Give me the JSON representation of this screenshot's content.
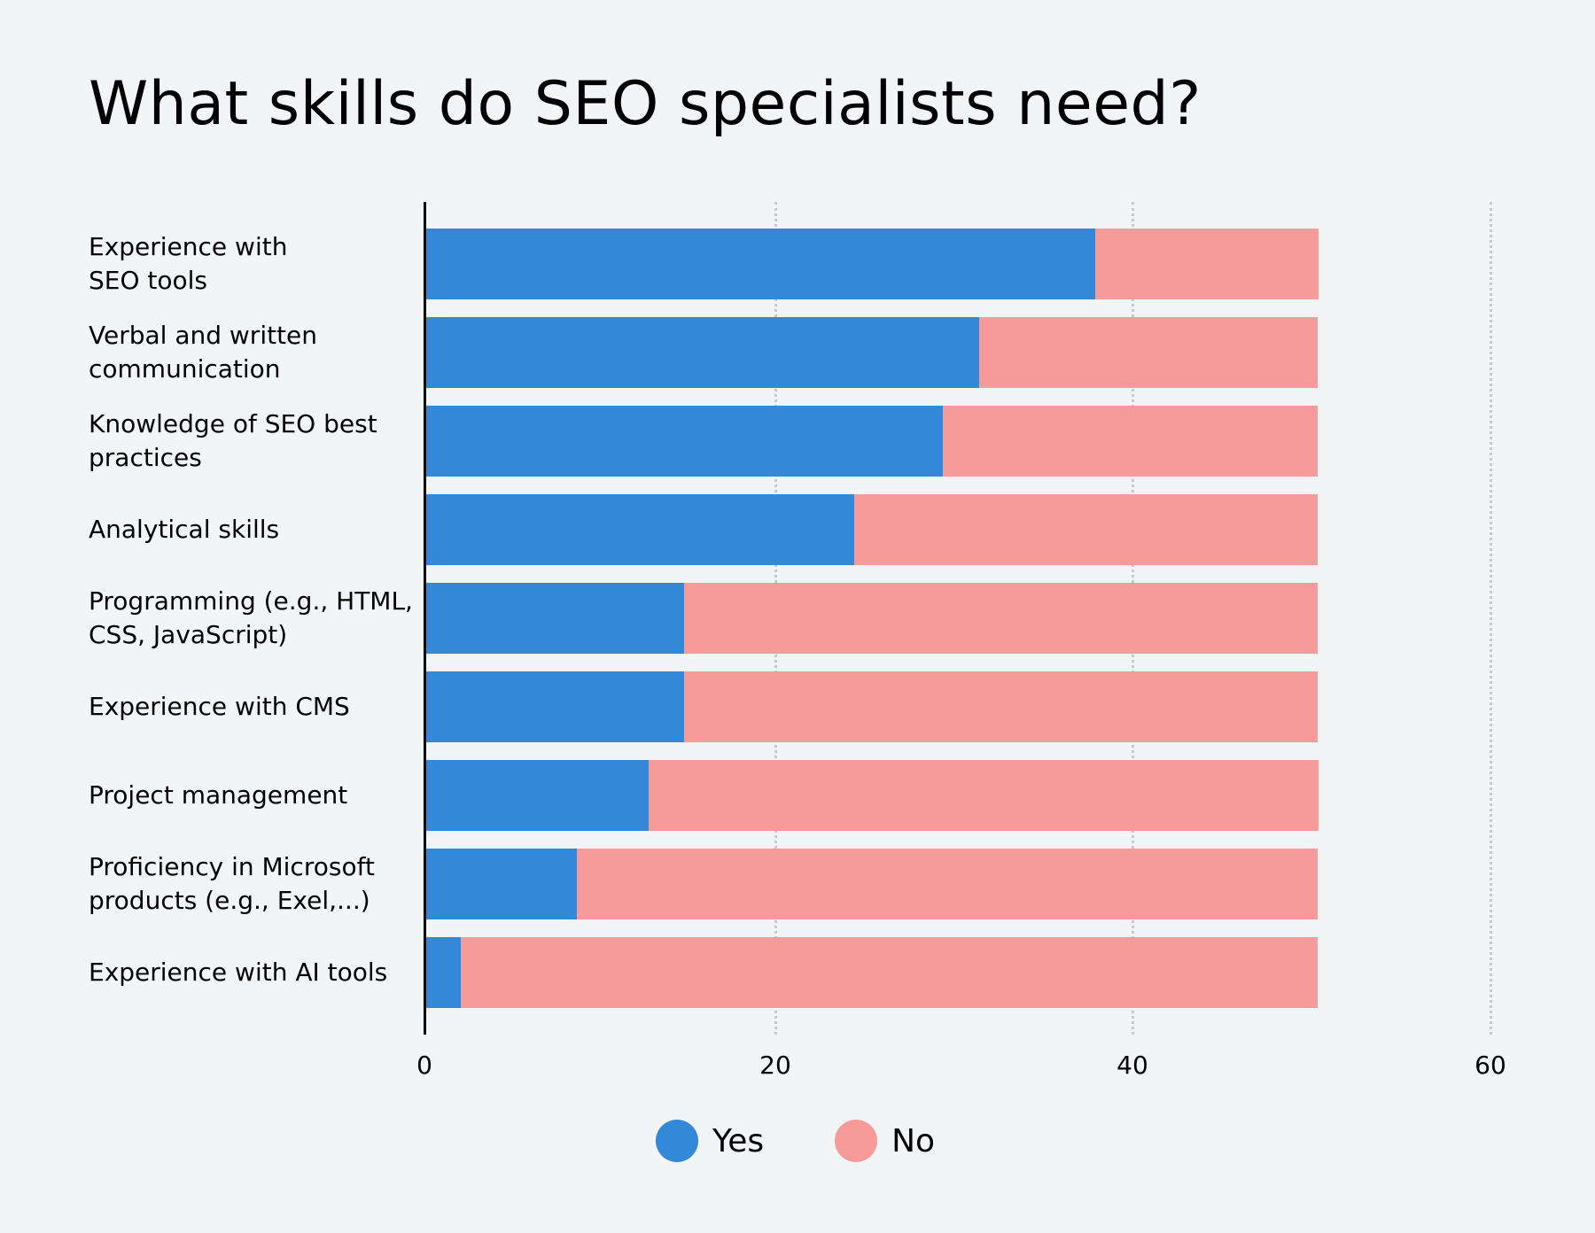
{
  "title": "What skills do SEO specialists need?",
  "colors": {
    "yes": "#3388d8",
    "no": "#f79a9a",
    "background": "#f3f4f6"
  },
  "legend": [
    {
      "label": "Yes",
      "color": "#3388d8"
    },
    {
      "label": "No",
      "color": "#f79a9a"
    }
  ],
  "axis": {
    "ticks": [
      "0",
      "20",
      "40",
      "60"
    ]
  },
  "chart_data": {
    "type": "bar",
    "orientation": "horizontal",
    "stacked": true,
    "title": "What skills do SEO specialists need?",
    "xlabel": "",
    "ylabel": "",
    "xlim": [
      0,
      60
    ],
    "xticks": [
      0,
      20,
      40,
      60
    ],
    "grid": "vertical dotted",
    "legend_position": "bottom",
    "categories": [
      "Experience with SEO tools",
      "Verbal and written communication",
      "Knowledge of SEO best practices",
      "Analytical skills",
      "Programming (e.g., HTML, CSS, JavaScript)",
      "Experience with CMS",
      "Project management",
      "Proficiency in Microsoft products (e.g., Exel,...)",
      "Experience with AI tools"
    ],
    "series": [
      {
        "name": "Yes",
        "values": [
          37.5,
          31,
          29,
          24,
          14.5,
          14.5,
          12.5,
          8.5,
          2
        ]
      },
      {
        "name": "No",
        "values": [
          12.5,
          19,
          21,
          26,
          35.5,
          35.5,
          37.5,
          41.5,
          48
        ]
      }
    ]
  },
  "rows": [
    {
      "label_lines": [
        "Experience with",
        "SEO tools"
      ],
      "yes": 37.5,
      "no": 12.5
    },
    {
      "label_lines": [
        "Verbal and written",
        "communication"
      ],
      "yes": 31,
      "no": 19
    },
    {
      "label_lines": [
        "Knowledge of SEO best",
        "practices"
      ],
      "yes": 29,
      "no": 21
    },
    {
      "label_lines": [
        "Analytical skills"
      ],
      "yes": 24,
      "no": 26
    },
    {
      "label_lines": [
        "Programming (e.g., HTML,",
        "CSS, JavaScript)"
      ],
      "yes": 14.5,
      "no": 35.5
    },
    {
      "label_lines": [
        "Experience with CMS"
      ],
      "yes": 14.5,
      "no": 35.5
    },
    {
      "label_lines": [
        "Project management"
      ],
      "yes": 12.5,
      "no": 37.5
    },
    {
      "label_lines": [
        "Proficiency in Microsoft",
        "products (e.g., Exel,...)"
      ],
      "yes": 8.5,
      "no": 41.5
    },
    {
      "label_lines": [
        "Experience with AI tools"
      ],
      "yes": 2,
      "no": 48
    }
  ]
}
